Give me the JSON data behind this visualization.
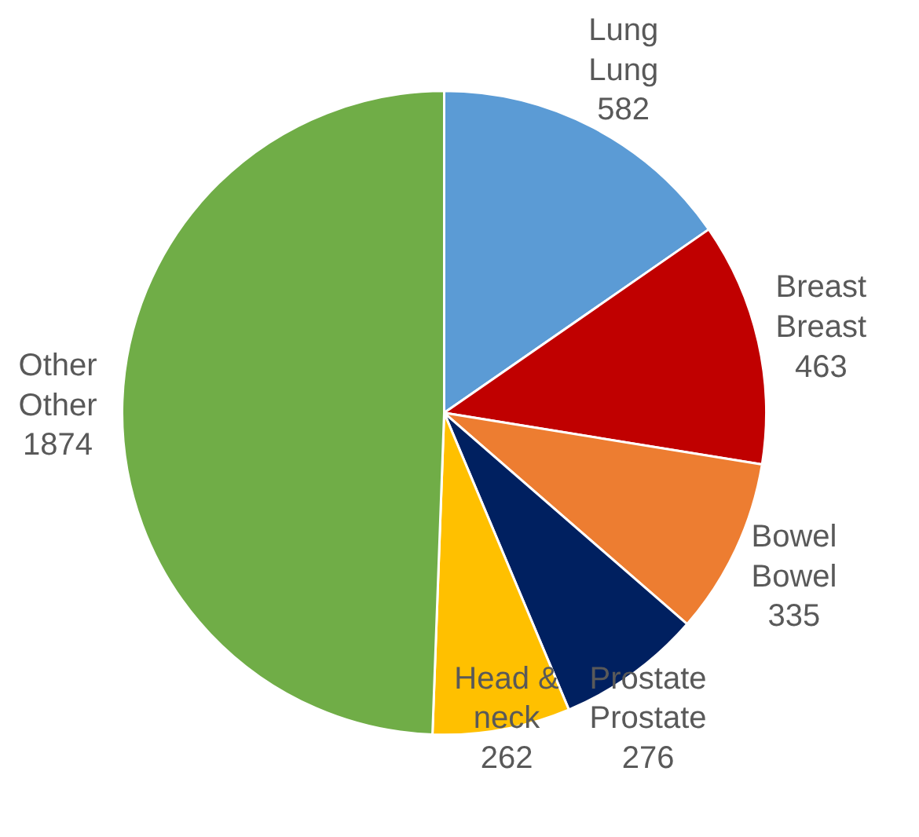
{
  "chart_data": {
    "type": "pie",
    "categories": [
      "Lung",
      "Breast",
      "Bowel",
      "Prostate",
      "Head & neck",
      "Other"
    ],
    "values": [
      582,
      463,
      335,
      276,
      262,
      1874
    ],
    "colors": [
      "#5b9bd5",
      "#c00000",
      "#ed7d31",
      "#002060",
      "#ffc000",
      "#70ad47"
    ],
    "value_labels": [
      "Lung\n582",
      "Breast\n463",
      "Bowel\n335",
      "Prostate\n276",
      "262",
      "Other\n1874"
    ]
  }
}
